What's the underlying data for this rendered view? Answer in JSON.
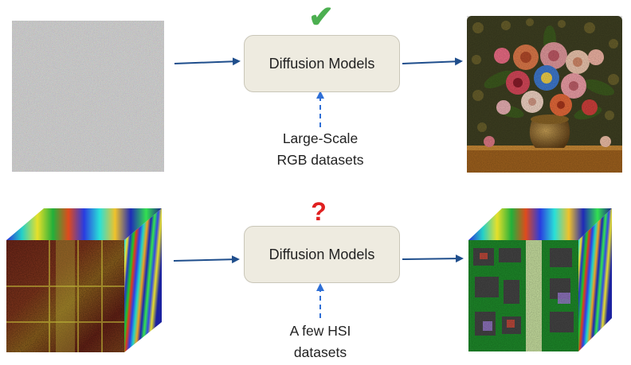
{
  "top_row": {
    "model_label": "Diffusion Models",
    "status_mark": "✔",
    "data_source": {
      "line1": "Large-Scale",
      "line2": "RGB datasets"
    }
  },
  "bottom_row": {
    "model_label": "Diffusion Models",
    "status_mark": "?",
    "data_source": {
      "line1": "A few HSI",
      "line2": "datasets"
    }
  },
  "colors": {
    "solid_arrow": "#1f4e8c",
    "dashed_arrow": "#2f6fd6",
    "check": "#4caf50",
    "question": "#e02020",
    "box_fill": "#eeebe0"
  },
  "icons": {
    "noise": "noise-image-icon",
    "painting": "flower-painting-icon",
    "hsi_in": "hsi-cube-icon",
    "hsi_out": "generated-hsi-cube-icon"
  }
}
